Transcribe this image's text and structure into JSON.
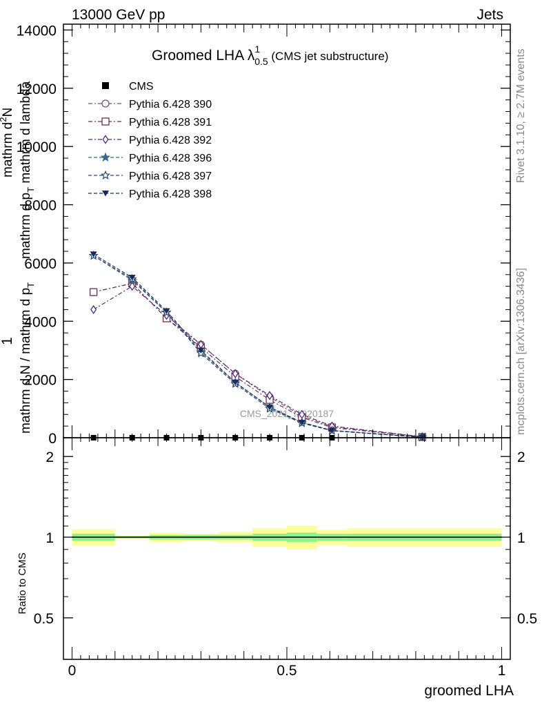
{
  "header": {
    "left": "13000 GeV pp",
    "right": "Jets"
  },
  "plot_title": {
    "main": "Groomed LHA ",
    "symbol": "λ",
    "superscript": "1",
    "subscript": "0.5",
    "suffix": " (CMS jet substructure)"
  },
  "side_labels": {
    "rivet": "Rivet 3.1.10, ≥ 2.7M events",
    "mcplots": "mcplots.cern.ch [arXiv:1306.3436]"
  },
  "watermark": "CMS_2021_I1920187",
  "y_label_main": {
    "numerator_one": "1",
    "denominator_one": "mathrm d N / mathrm d p",
    "denominator_sub": "T",
    "numerator_fraction": "mathrm d",
    "numerator_fraction_sup": "2",
    "numerator_fraction_tail": "N",
    "denominator_fraction": "mathrm d p",
    "denominator_fraction_sub": "T",
    "denominator_fraction_tail": " mathrm d lambda"
  },
  "y_label_ratio": "Ratio to CMS",
  "x_label": "groomed LHA",
  "colors": {
    "p390": "#7a4a7a",
    "p391": "#6a3050",
    "p392": "#4a2a7a",
    "p396": "#3a6a8a",
    "p397": "#2a4a6a",
    "p398": "#1a2a5a",
    "cms": "#000000",
    "band_inner": "#90f090",
    "band_outer": "#ffff99"
  },
  "chart_data": [
    {
      "type": "line",
      "panel": "main",
      "x": [
        0.05,
        0.14,
        0.22,
        0.3,
        0.38,
        0.46,
        0.535,
        0.605,
        0.815
      ],
      "xlim": [
        -0.02,
        1.02
      ],
      "ylim": [
        0,
        14200
      ],
      "yticks": [
        0,
        2000,
        4000,
        6000,
        8000,
        10000,
        12000,
        14000
      ],
      "ytick_labels": [
        "0",
        "2000",
        "4000",
        "6000",
        "8000",
        "10000",
        "12000",
        "14000"
      ],
      "cms_values": [
        0,
        0,
        0,
        0,
        0,
        0,
        0,
        0,
        0
      ],
      "series": [
        {
          "name": "CMS",
          "key": "cms",
          "marker": "square-filled",
          "values": [
            0,
            0,
            0,
            0,
            0,
            0,
            0,
            0,
            0
          ]
        },
        {
          "name": "Pythia 6.428 390",
          "key": "p390",
          "marker": "circle-open",
          "dash": "dashdot",
          "values": [
            5000,
            5300,
            4100,
            3200,
            2200,
            1400,
            750,
            380,
            30
          ]
        },
        {
          "name": "Pythia 6.428 391",
          "key": "p391",
          "marker": "square-open",
          "dash": "dashdot",
          "values": [
            5000,
            5300,
            4100,
            3100,
            2100,
            1300,
            700,
            350,
            25
          ]
        },
        {
          "name": "Pythia 6.428 392",
          "key": "p392",
          "marker": "diamond-open",
          "dash": "dashdot",
          "values": [
            4400,
            5200,
            4200,
            3200,
            2200,
            1450,
            800,
            400,
            35
          ]
        },
        {
          "name": "Pythia 6.428 396",
          "key": "p396",
          "marker": "star-filled",
          "dash": "dashed",
          "values": [
            6250,
            5400,
            4300,
            2950,
            1900,
            1050,
            530,
            250,
            15
          ]
        },
        {
          "name": "Pythia 6.428 397",
          "key": "p397",
          "marker": "star-open",
          "dash": "dashed",
          "values": [
            6250,
            5450,
            4300,
            2900,
            1850,
            1000,
            500,
            240,
            15
          ]
        },
        {
          "name": "Pythia 6.428 398",
          "key": "p398",
          "marker": "triangle-down-filled",
          "dash": "dashed",
          "values": [
            6300,
            5500,
            4350,
            3000,
            1900,
            1050,
            520,
            250,
            15
          ]
        }
      ]
    },
    {
      "type": "area",
      "panel": "ratio",
      "xlim": [
        -0.02,
        1.02
      ],
      "ylim": [
        0.35,
        2.35
      ],
      "yticks": [
        0.5,
        1,
        2
      ],
      "ytick_labels": [
        "0.5",
        "1",
        "2"
      ],
      "xticks": [
        0,
        0.5,
        1
      ],
      "xtick_labels": [
        "0",
        "0.5",
        "1"
      ],
      "bins": [
        {
          "x0": 0.0,
          "x1": 0.1,
          "inner": [
            0.97,
            1.03
          ],
          "outer": [
            0.93,
            1.07
          ]
        },
        {
          "x0": 0.1,
          "x1": 0.18,
          "inner": [
            0.99,
            1.01
          ],
          "outer": [
            0.985,
            1.015
          ]
        },
        {
          "x0": 0.18,
          "x1": 0.26,
          "inner": [
            0.98,
            1.02
          ],
          "outer": [
            0.96,
            1.04
          ]
        },
        {
          "x0": 0.26,
          "x1": 0.34,
          "inner": [
            0.98,
            1.02
          ],
          "outer": [
            0.97,
            1.03
          ]
        },
        {
          "x0": 0.34,
          "x1": 0.42,
          "inner": [
            0.98,
            1.02
          ],
          "outer": [
            0.955,
            1.045
          ]
        },
        {
          "x0": 0.42,
          "x1": 0.5,
          "inner": [
            0.97,
            1.03
          ],
          "outer": [
            0.92,
            1.08
          ]
        },
        {
          "x0": 0.5,
          "x1": 0.57,
          "inner": [
            0.96,
            1.04
          ],
          "outer": [
            0.9,
            1.1
          ]
        },
        {
          "x0": 0.57,
          "x1": 0.64,
          "inner": [
            0.97,
            1.03
          ],
          "outer": [
            0.935,
            1.065
          ]
        },
        {
          "x0": 0.64,
          "x1": 1.0,
          "inner": [
            0.97,
            1.03
          ],
          "outer": [
            0.92,
            1.08
          ]
        }
      ],
      "reference_line": 1
    }
  ]
}
